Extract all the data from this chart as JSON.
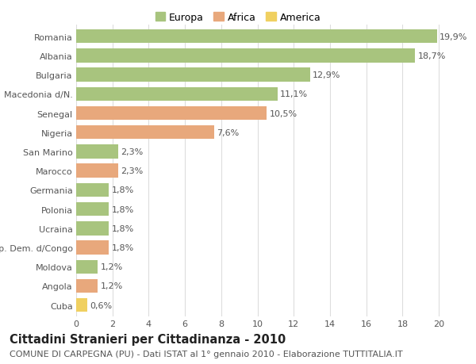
{
  "countries": [
    "Romania",
    "Albania",
    "Bulgaria",
    "Macedonia d/N.",
    "Senegal",
    "Nigeria",
    "San Marino",
    "Marocco",
    "Germania",
    "Polonia",
    "Ucraina",
    "Rep. Dem. d/Congo",
    "Moldova",
    "Angola",
    "Cuba"
  ],
  "values": [
    19.9,
    18.7,
    12.9,
    11.1,
    10.5,
    7.6,
    2.3,
    2.3,
    1.8,
    1.8,
    1.8,
    1.8,
    1.2,
    1.2,
    0.6
  ],
  "labels": [
    "19,9%",
    "18,7%",
    "12,9%",
    "11,1%",
    "10,5%",
    "7,6%",
    "2,3%",
    "2,3%",
    "1,8%",
    "1,8%",
    "1,8%",
    "1,8%",
    "1,2%",
    "1,2%",
    "0,6%"
  ],
  "continents": [
    "Europa",
    "Europa",
    "Europa",
    "Europa",
    "Africa",
    "Africa",
    "Europa",
    "Africa",
    "Europa",
    "Europa",
    "Europa",
    "Africa",
    "Europa",
    "Africa",
    "America"
  ],
  "colors": {
    "Europa": "#a8c47e",
    "Africa": "#e8a87c",
    "America": "#f0d060"
  },
  "title": "Cittadini Stranieri per Cittadinanza - 2010",
  "subtitle": "COMUNE DI CARPEGNA (PU) - Dati ISTAT al 1° gennaio 2010 - Elaborazione TUTTITALIA.IT",
  "xlim": [
    0,
    21
  ],
  "xticks": [
    0,
    2,
    4,
    6,
    8,
    10,
    12,
    14,
    16,
    18,
    20
  ],
  "background_color": "#ffffff",
  "grid_color": "#dddddd",
  "bar_height": 0.72,
  "label_fontsize": 8,
  "tick_fontsize": 8,
  "title_fontsize": 10.5,
  "subtitle_fontsize": 8
}
